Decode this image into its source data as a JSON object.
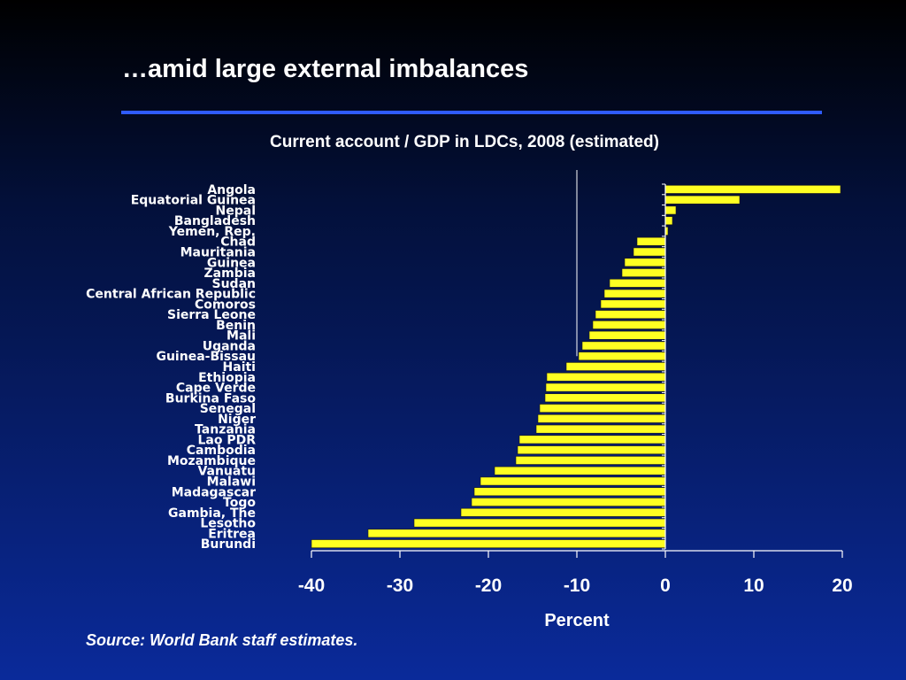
{
  "slide": {
    "title": "…amid large external imbalances",
    "source": "Source: World Bank staff estimates."
  },
  "colors": {
    "bar_fill": "#ffff22",
    "bar_stroke": "#1a1a1a",
    "rule": "#2f5bff",
    "text": "#ffffff"
  },
  "chart_data": {
    "type": "bar",
    "orientation": "horizontal",
    "title": "Current account / GDP in LDCs, 2008 (estimated)",
    "xlabel": "Percent",
    "ylabel": "",
    "xlim": [
      -40,
      20
    ],
    "xticks": [
      -40,
      -30,
      -20,
      -10,
      0,
      10,
      20
    ],
    "grid": false,
    "categories": [
      "Angola",
      "Equatorial Guinea",
      "Nepal",
      "Bangladesh",
      "Yemen, Rep.",
      "Chad",
      "Mauritania",
      "Guinea",
      "Zambia",
      "Sudan",
      "Central African Republic",
      "Comoros",
      "Sierra Leone",
      "Benin",
      "Mali",
      "Uganda",
      "Guinea-Bissau",
      "Haiti",
      "Ethiopia",
      "Cape Verde",
      "Burkina Faso",
      "Senegal",
      "Niger",
      "Tanzania",
      "Lao PDR",
      "Cambodia",
      "Mozambique",
      "Vanuatu",
      "Malawi",
      "Madagascar",
      "Togo",
      "Gambia, The",
      "Lesotho",
      "Eritrea",
      "Burundi"
    ],
    "values": [
      19.8,
      8.4,
      1.2,
      0.8,
      0.3,
      -3.2,
      -3.6,
      -4.6,
      -4.9,
      -6.3,
      -6.9,
      -7.3,
      -7.9,
      -8.2,
      -8.6,
      -9.4,
      -9.8,
      -11.2,
      -13.4,
      -13.5,
      -13.6,
      -14.2,
      -14.4,
      -14.6,
      -16.5,
      -16.7,
      -16.9,
      -19.3,
      -20.9,
      -21.6,
      -21.9,
      -23.1,
      -28.4,
      -33.6,
      -40.0
    ]
  }
}
